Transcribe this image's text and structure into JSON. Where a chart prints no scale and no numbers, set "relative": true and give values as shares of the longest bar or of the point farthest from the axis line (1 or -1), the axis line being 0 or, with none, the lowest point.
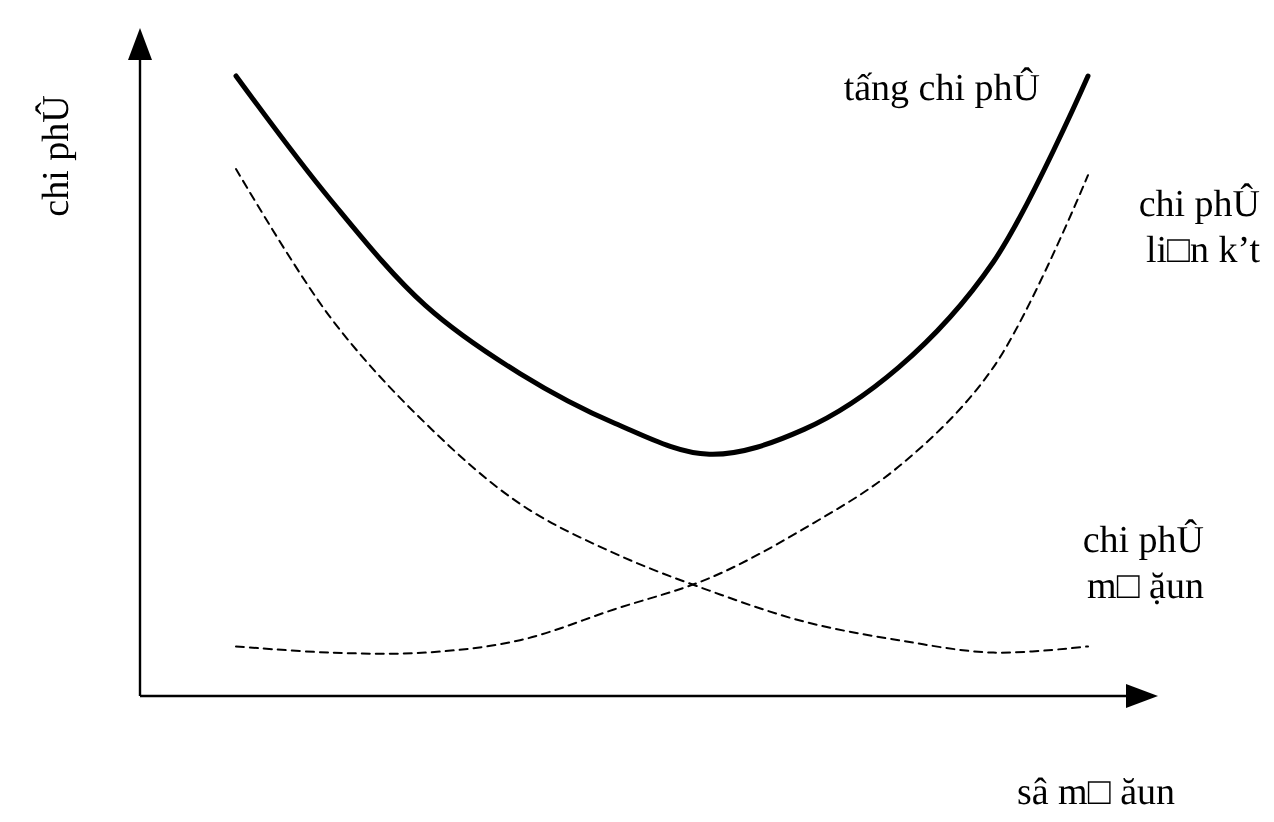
{
  "chart_data": {
    "type": "line",
    "relative": true,
    "xlabel": "sâ m□ ăun",
    "ylabel": "chi phÛ",
    "categories": [
      null,
      null,
      null,
      null,
      null,
      null,
      null,
      null,
      null,
      null
    ],
    "legend": false,
    "series": [
      {
        "name": "tấng chi phÛ",
        "color": "#000000",
        "line_style": "solid",
        "values": [
          1,
          0.8,
          0.63,
          0.52,
          0.44,
          0.39,
          0.43,
          0.53,
          0.7,
          1
        ]
      },
      {
        "name": "chi phÛ li□n k’t",
        "color": "#000000",
        "line_style": "dashed",
        "values": [
          0.08,
          0.07,
          0.07,
          0.09,
          0.14,
          0.19,
          0.27,
          0.37,
          0.53,
          0.84
        ]
      },
      {
        "name": "chi phÛ m□ ặun",
        "color": "#000000",
        "line_style": "dashed",
        "values": [
          0.85,
          0.61,
          0.44,
          0.31,
          0.23,
          0.17,
          0.12,
          0.09,
          0.07,
          0.08
        ]
      }
    ]
  }
}
